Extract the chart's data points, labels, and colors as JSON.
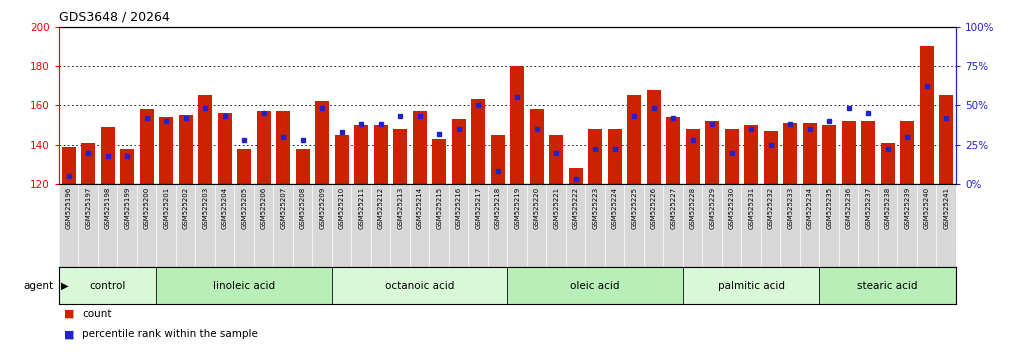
{
  "title": "GDS3648 / 20264",
  "samples": [
    "GSM525196",
    "GSM525197",
    "GSM525198",
    "GSM525199",
    "GSM525200",
    "GSM525201",
    "GSM525202",
    "GSM525203",
    "GSM525204",
    "GSM525205",
    "GSM525206",
    "GSM525207",
    "GSM525208",
    "GSM525209",
    "GSM525210",
    "GSM525211",
    "GSM525212",
    "GSM525213",
    "GSM525214",
    "GSM525215",
    "GSM525216",
    "GSM525217",
    "GSM525218",
    "GSM525219",
    "GSM525220",
    "GSM525221",
    "GSM525222",
    "GSM525223",
    "GSM525224",
    "GSM525225",
    "GSM525226",
    "GSM525227",
    "GSM525228",
    "GSM525229",
    "GSM525230",
    "GSM525231",
    "GSM525232",
    "GSM525233",
    "GSM525234",
    "GSM525235",
    "GSM525236",
    "GSM525237",
    "GSM525238",
    "GSM525239",
    "GSM525240",
    "GSM525241"
  ],
  "counts": [
    139,
    141,
    149,
    138,
    158,
    154,
    155,
    165,
    156,
    138,
    157,
    157,
    138,
    162,
    145,
    150,
    150,
    148,
    157,
    143,
    153,
    163,
    145,
    180,
    158,
    145,
    128,
    148,
    148,
    165,
    168,
    154,
    148,
    152,
    148,
    150,
    147,
    151,
    151,
    150,
    152,
    152,
    141,
    152,
    190,
    165
  ],
  "percentile_rank": [
    5,
    20,
    18,
    18,
    42,
    40,
    42,
    48,
    43,
    28,
    45,
    30,
    28,
    48,
    33,
    38,
    38,
    43,
    43,
    32,
    35,
    50,
    8,
    55,
    35,
    20,
    3,
    22,
    22,
    43,
    48,
    42,
    28,
    38,
    20,
    35,
    25,
    38,
    35,
    40,
    48,
    45,
    22,
    30,
    62,
    42
  ],
  "groups": [
    {
      "label": "control",
      "start": 0,
      "end": 4
    },
    {
      "label": "linoleic acid",
      "start": 5,
      "end": 13
    },
    {
      "label": "octanoic acid",
      "start": 14,
      "end": 22
    },
    {
      "label": "oleic acid",
      "start": 23,
      "end": 31
    },
    {
      "label": "palmitic acid",
      "start": 32,
      "end": 38
    },
    {
      "label": "stearic acid",
      "start": 39,
      "end": 45
    }
  ],
  "bar_color": "#cc2200",
  "dot_color": "#2222cc",
  "ylim_left": [
    120,
    200
  ],
  "ylim_right": [
    0,
    100
  ],
  "yticks_left": [
    120,
    140,
    160,
    180,
    200
  ],
  "yticks_right": [
    0,
    25,
    50,
    75,
    100
  ],
  "group_colors": [
    "#d8f8d8",
    "#b8eeb8"
  ],
  "plot_bg": "#ffffff",
  "fig_bg": "#ffffff",
  "xtick_bg": "#d8d8d8"
}
